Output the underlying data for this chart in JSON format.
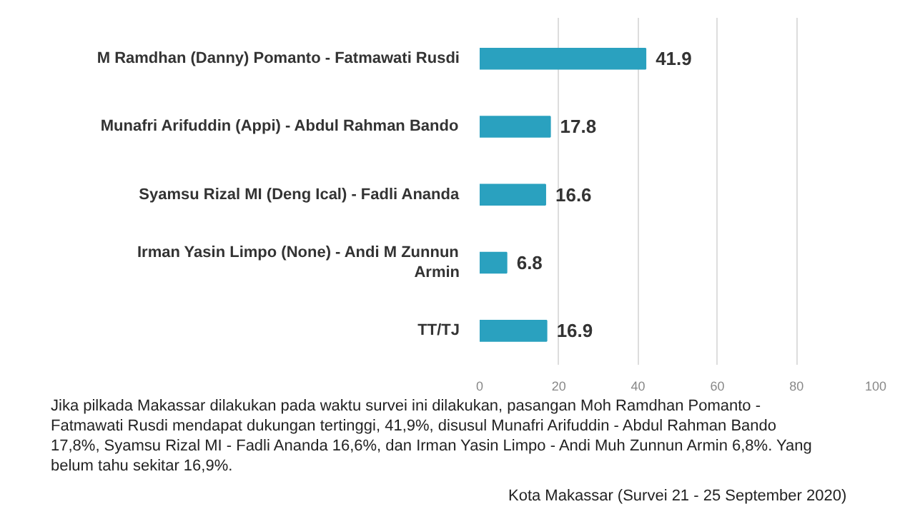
{
  "chart_data": {
    "type": "bar",
    "orientation": "horizontal",
    "categories": [
      "M Ramdhan (Danny) Pomanto - Fatmawati Rusdi",
      "Munafri Arifuddin (Appi) - Abdul Rahman Bando",
      "Syamsu Rizal MI (Deng Ical) - Fadli Ananda",
      "Irman Yasin Limpo (None) - Andi M Zunnun Armin",
      "TT/TJ"
    ],
    "values": [
      41.9,
      17.8,
      16.6,
      6.8,
      16.9
    ],
    "color": "#2aa1bf",
    "data_labels": true,
    "grid": "x",
    "xlim": [
      0,
      100
    ],
    "xticks": [
      0,
      20,
      40,
      60,
      80,
      100
    ],
    "annotations": [
      "Jika pilkada Makassar dilakukan pada waktu survei ini dilakukan, pasangan Moh Ramdhan Pomanto - Fatmawati Rusdi mendapat dukungan tertinggi, 41,9%, disusul Munafri Arifuddin - Abdul Rahman Bando 17,8%, Syamsu Rizal MI - Fadli Ananda 16,6%, dan Irman Yasin Limpo - Andi Muh Zunnun Armin 6,8%. Yang belum tahu sekitar 16,9%.",
      "Kota Makassar (Survei 21 - 25 September 2020)"
    ]
  }
}
